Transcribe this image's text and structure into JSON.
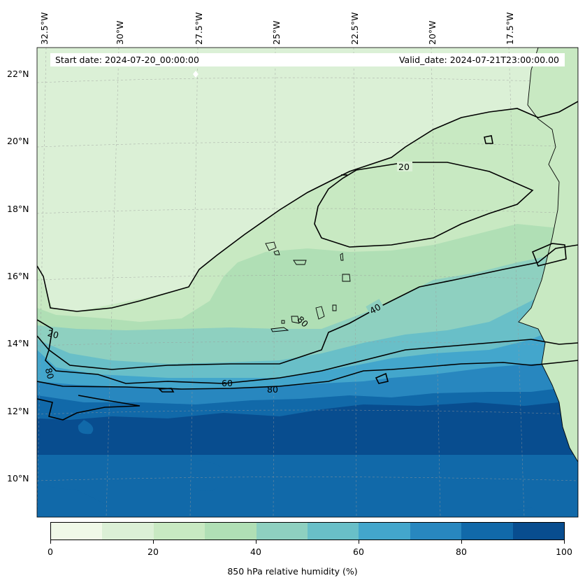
{
  "map": {
    "start_date_text": "Start date: 2024-07-20_00:00:00",
    "valid_date_text": "Valid_date: 2024-07-21T23:00:00.00",
    "longitude_labels": [
      "32.5°W",
      "30°W",
      "27.5°W",
      "25°W",
      "22.5°W",
      "20°W",
      "17.5°W"
    ],
    "latitude_labels": [
      "22°N",
      "20°N",
      "18°N",
      "16°N",
      "14°N",
      "12°N",
      "10°N"
    ],
    "contour_labels": [
      "20",
      "40",
      "20",
      "80",
      "60",
      "80",
      "80"
    ],
    "colorbar": {
      "label": "850 hPa relative humidity (%)",
      "ticks": [
        "0",
        "20",
        "40",
        "60",
        "80",
        "100"
      ],
      "colors": [
        "#f0f9e8",
        "#dbf0d6",
        "#c8e9c2",
        "#b0dfb5",
        "#8ed0c0",
        "#69bfc8",
        "#43a6cc",
        "#2887bf",
        "#1169a9",
        "#084d8f"
      ]
    },
    "land_color": "#c8e9c2"
  }
}
